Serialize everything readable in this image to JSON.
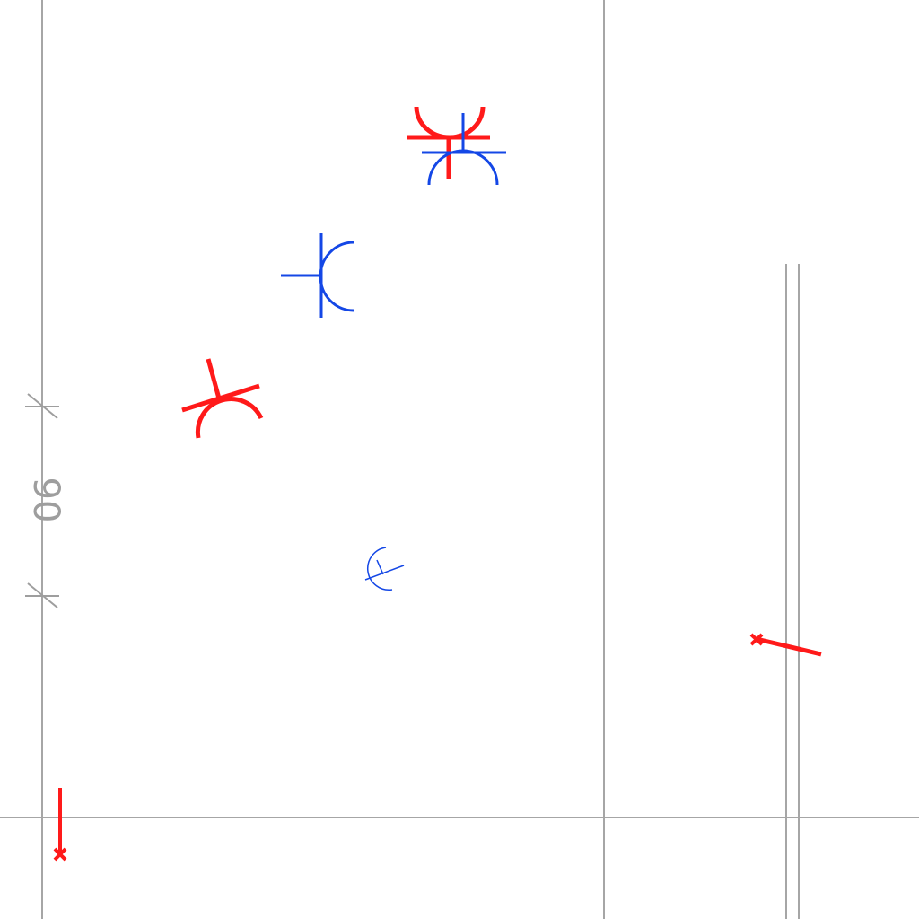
{
  "dimension": {
    "label": "90",
    "color": "#9e9e9e"
  },
  "colors": {
    "guide": "#a6a6a6",
    "symbol_red": "#ff1a1a",
    "symbol_blue": "#1447e6"
  },
  "symbols": [
    {
      "name": "arc-junction",
      "color": "red"
    },
    {
      "name": "arc-junction",
      "color": "blue"
    },
    {
      "name": "arc-junction",
      "color": "blue"
    },
    {
      "name": "arc-junction",
      "color": "red"
    },
    {
      "name": "arc-junction",
      "color": "blue"
    }
  ],
  "markers": [
    {
      "name": "point-marker-stick",
      "color": "red"
    },
    {
      "name": "point-marker-stick",
      "color": "red"
    }
  ]
}
